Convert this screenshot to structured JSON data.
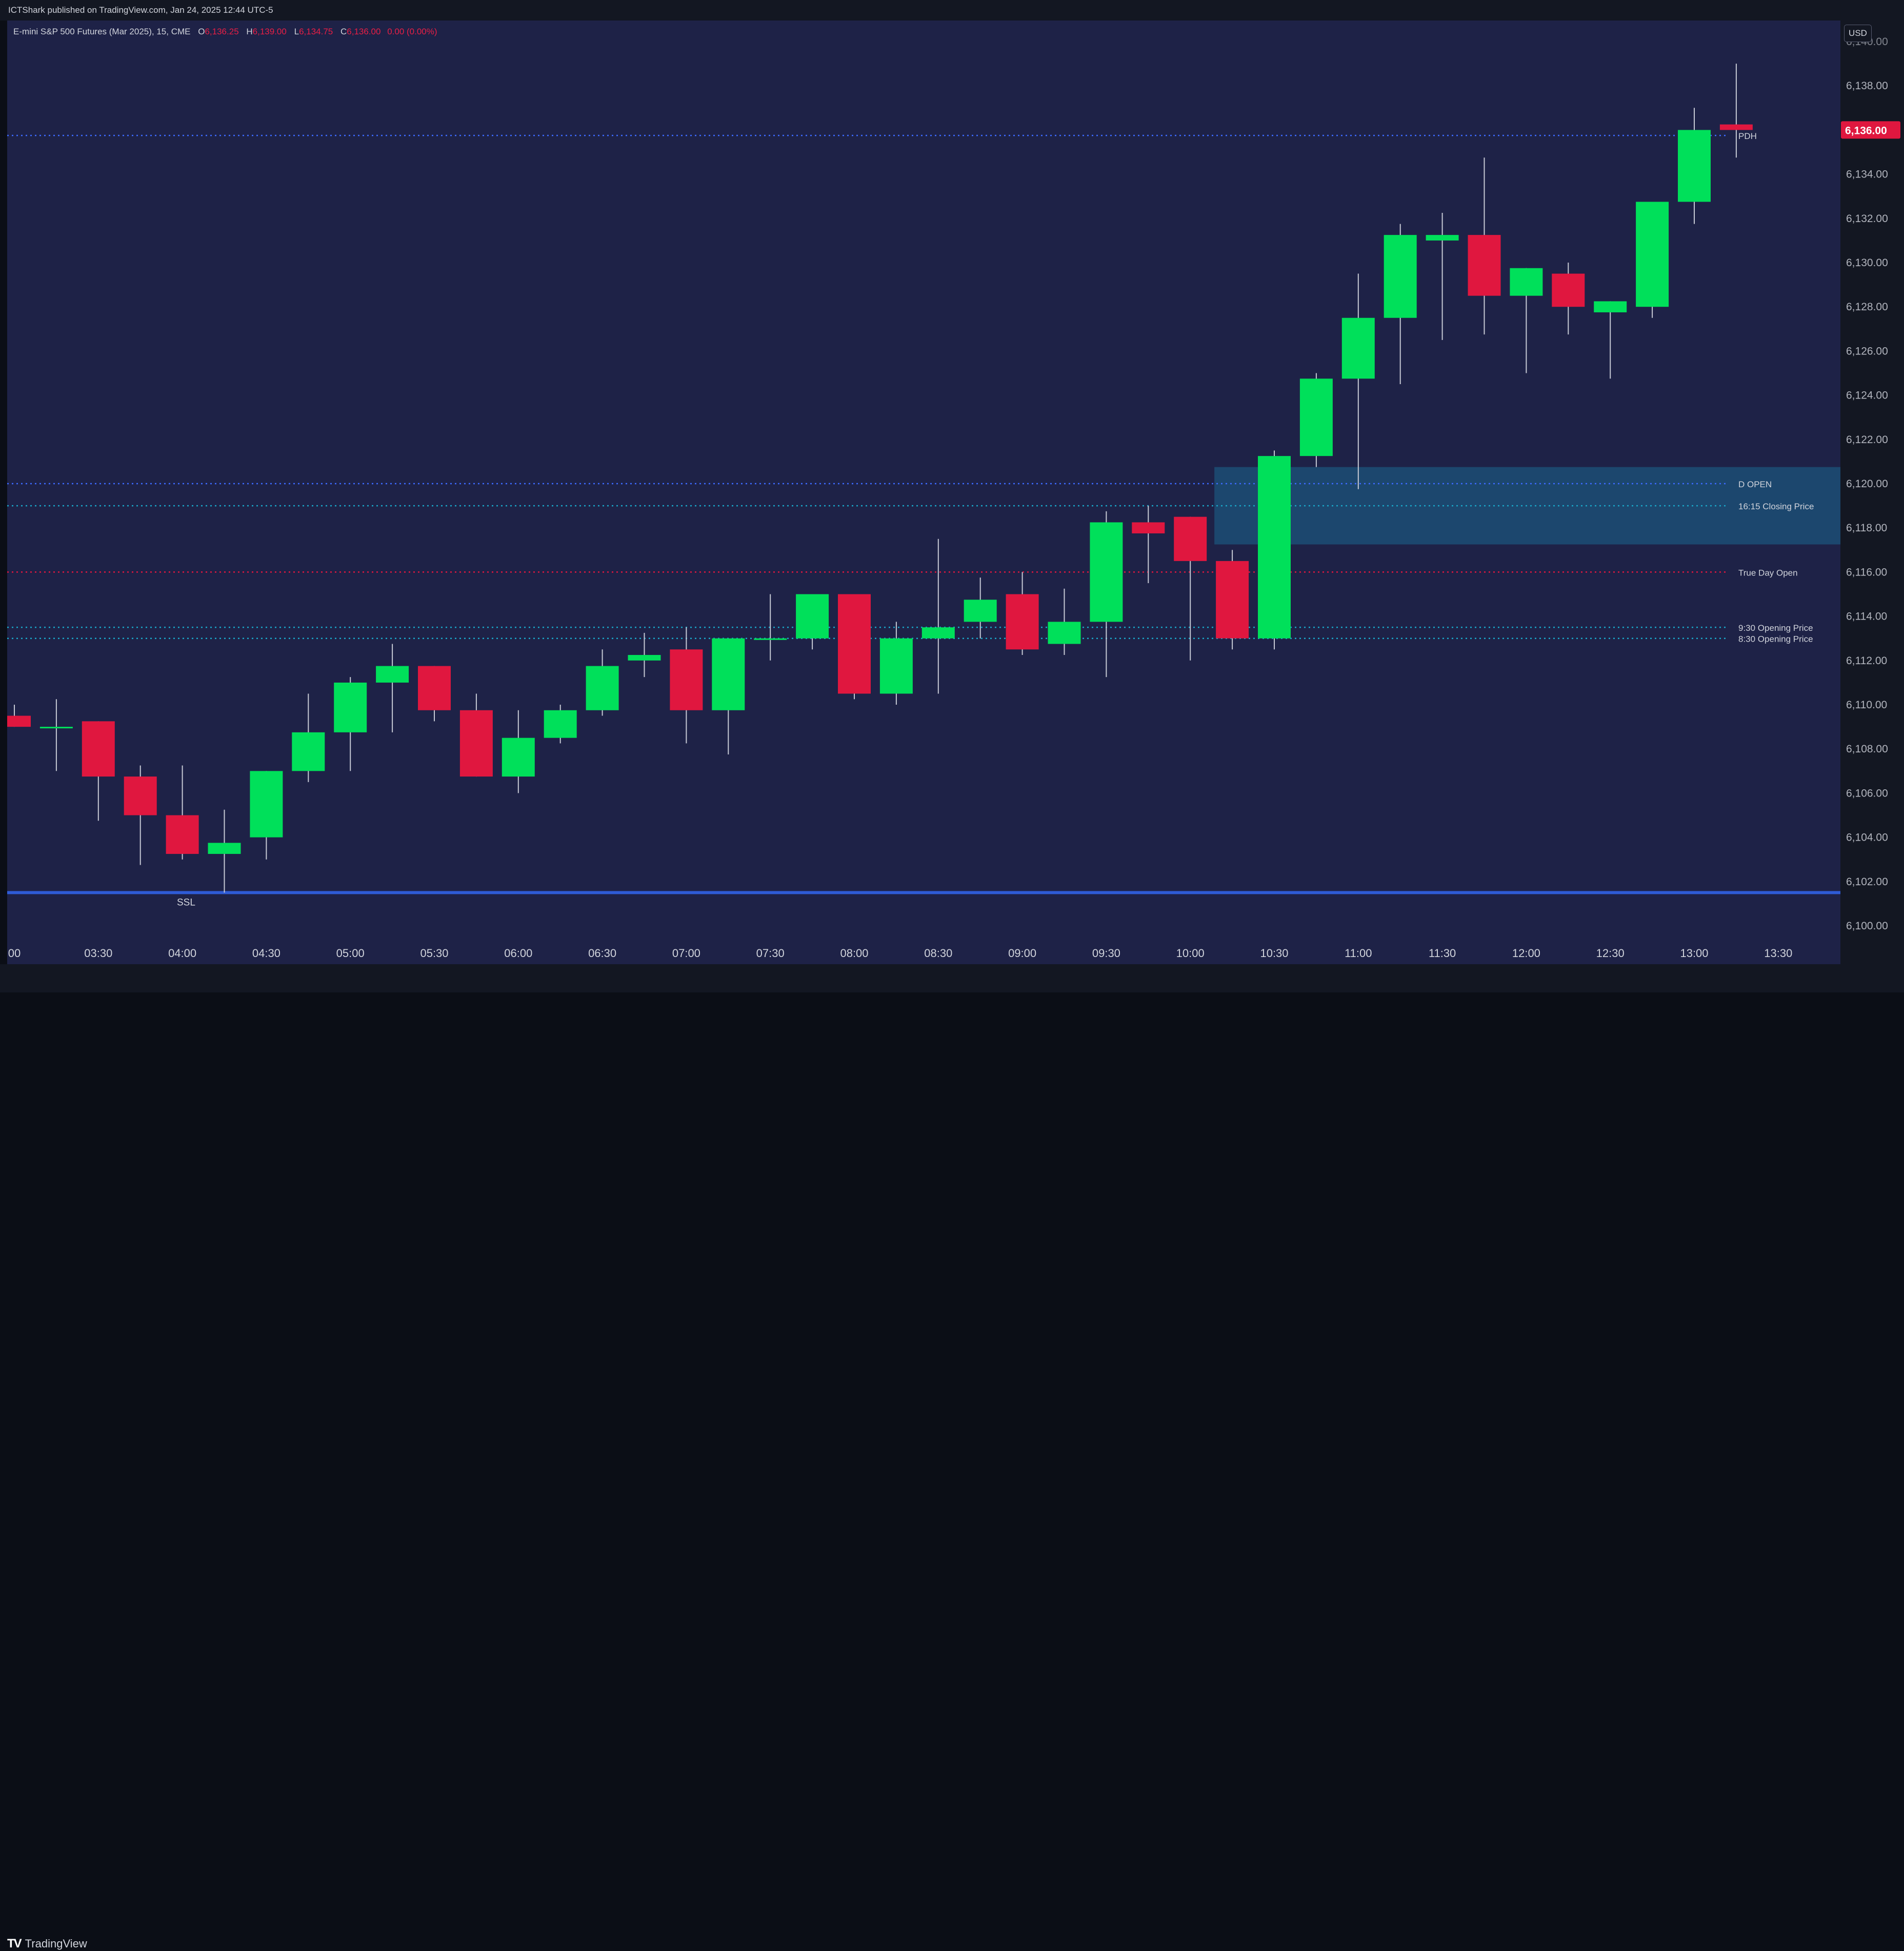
{
  "header": {
    "publisher_text": "ICTShark published on TradingView.com, Jan 24, 2025 12:44 UTC-5"
  },
  "legend": {
    "symbol": "E-mini S&P 500 Futures (Mar 2025), 15, CME",
    "o_label": "O",
    "o_value": "6,136.25",
    "h_label": "H",
    "h_value": "6,139.00",
    "l_label": "L",
    "l_value": "6,134.75",
    "c_label": "C",
    "c_value": "6,136.00",
    "change": "0.00 (0.00%)"
  },
  "currency": "USD",
  "brand": "TradingView",
  "colors": {
    "background": "#1e2247",
    "up": "#00e05a",
    "down": "#e0173f",
    "zone": "#1c4d75",
    "ssl_line": "#2f5bd6"
  },
  "chart_data": {
    "type": "candlestick",
    "symbol": "E-mini S&P 500 Futures (Mar 2025)",
    "interval": "15",
    "ylim": [
      6099,
      6141.5
    ],
    "y_ticks": [
      6100,
      6102,
      6104,
      6106,
      6108,
      6110,
      6112,
      6114,
      6116,
      6118,
      6120,
      6122,
      6124,
      6126,
      6128,
      6130,
      6132,
      6134,
      6136,
      6138
    ],
    "y_tick_labels": [
      "6,100.00",
      "6,102.00",
      "6,104.00",
      "6,106.00",
      "6,108.00",
      "6,110.00",
      "6,112.00",
      "6,114.00",
      "6,116.00",
      "6,118.00",
      "6,120.00",
      "6,122.00",
      "6,124.00",
      "6,126.00",
      "6,128.00",
      "6,130.00",
      "6,132.00",
      "6,134.00",
      "6,136.00",
      "6,138.00"
    ],
    "x_ticks": [
      {
        "i": -0.5,
        "label": "00"
      },
      {
        "i": 1.5,
        "label": "03:30"
      },
      {
        "i": 3.5,
        "label": "04:00"
      },
      {
        "i": 5.5,
        "label": "04:30"
      },
      {
        "i": 7.5,
        "label": "05:00"
      },
      {
        "i": 9.5,
        "label": "05:30"
      },
      {
        "i": 11.5,
        "label": "06:00"
      },
      {
        "i": 13.5,
        "label": "06:30"
      },
      {
        "i": 15.5,
        "label": "07:00"
      },
      {
        "i": 17.5,
        "label": "07:30"
      },
      {
        "i": 19.5,
        "label": "08:00"
      },
      {
        "i": 21.5,
        "label": "08:30"
      },
      {
        "i": 23.5,
        "label": "09:00"
      },
      {
        "i": 25.5,
        "label": "09:30"
      },
      {
        "i": 27.5,
        "label": "10:00"
      },
      {
        "i": 29.5,
        "label": "10:30"
      },
      {
        "i": 31.5,
        "label": "11:00"
      },
      {
        "i": 33.5,
        "label": "11:30"
      },
      {
        "i": 35.5,
        "label": "12:00"
      },
      {
        "i": 37.5,
        "label": "12:30"
      },
      {
        "i": 39.5,
        "label": "13:00"
      },
      {
        "i": 41.5,
        "label": "13:30"
      }
    ],
    "candles": [
      {
        "o": 6109.5,
        "h": 6110.0,
        "l": 6109.0,
        "c": 6109.0
      },
      {
        "o": 6109.0,
        "h": 6110.25,
        "l": 6107.0,
        "c": 6109.0
      },
      {
        "o": 6109.25,
        "h": 6109.25,
        "l": 6104.75,
        "c": 6106.75
      },
      {
        "o": 6106.75,
        "h": 6107.25,
        "l": 6102.75,
        "c": 6105.0
      },
      {
        "o": 6105.0,
        "h": 6107.25,
        "l": 6103.0,
        "c": 6103.25
      },
      {
        "o": 6103.25,
        "h": 6105.25,
        "l": 6101.5,
        "c": 6103.75
      },
      {
        "o": 6104.0,
        "h": 6107.0,
        "l": 6103.0,
        "c": 6107.0
      },
      {
        "o": 6107.0,
        "h": 6110.5,
        "l": 6106.5,
        "c": 6108.75
      },
      {
        "o": 6108.75,
        "h": 6111.25,
        "l": 6107.0,
        "c": 6111.0
      },
      {
        "o": 6111.0,
        "h": 6112.75,
        "l": 6108.75,
        "c": 6111.75
      },
      {
        "o": 6111.75,
        "h": 6111.75,
        "l": 6109.25,
        "c": 6109.75
      },
      {
        "o": 6109.75,
        "h": 6110.5,
        "l": 6106.75,
        "c": 6106.75
      },
      {
        "o": 6106.75,
        "h": 6109.75,
        "l": 6106.0,
        "c": 6108.5
      },
      {
        "o": 6108.5,
        "h": 6110.0,
        "l": 6108.25,
        "c": 6109.75
      },
      {
        "o": 6109.75,
        "h": 6112.5,
        "l": 6109.5,
        "c": 6111.75
      },
      {
        "o": 6112.0,
        "h": 6113.25,
        "l": 6111.25,
        "c": 6112.25
      },
      {
        "o": 6112.5,
        "h": 6113.5,
        "l": 6108.25,
        "c": 6109.75
      },
      {
        "o": 6109.75,
        "h": 6113.0,
        "l": 6107.75,
        "c": 6113.0
      },
      {
        "o": 6113.0,
        "h": 6115.0,
        "l": 6112.0,
        "c": 6113.0
      },
      {
        "o": 6113.0,
        "h": 6115.0,
        "l": 6112.5,
        "c": 6115.0
      },
      {
        "o": 6115.0,
        "h": 6115.0,
        "l": 6110.25,
        "c": 6110.5
      },
      {
        "o": 6110.5,
        "h": 6113.75,
        "l": 6110.0,
        "c": 6113.0
      },
      {
        "o": 6113.0,
        "h": 6117.5,
        "l": 6110.5,
        "c": 6113.5
      },
      {
        "o": 6113.75,
        "h": 6115.75,
        "l": 6113.0,
        "c": 6114.75
      },
      {
        "o": 6115.0,
        "h": 6116.0,
        "l": 6112.25,
        "c": 6112.5
      },
      {
        "o": 6112.75,
        "h": 6115.25,
        "l": 6112.25,
        "c": 6113.75
      },
      {
        "o": 6113.75,
        "h": 6118.75,
        "l": 6111.25,
        "c": 6118.25
      },
      {
        "o": 6118.25,
        "h": 6119.0,
        "l": 6115.5,
        "c": 6117.75
      },
      {
        "o": 6118.5,
        "h": 6118.5,
        "l": 6112.0,
        "c": 6116.5
      },
      {
        "o": 6116.5,
        "h": 6117.0,
        "l": 6112.5,
        "c": 6113.0
      },
      {
        "o": 6113.0,
        "h": 6121.5,
        "l": 6112.5,
        "c": 6121.25
      },
      {
        "o": 6121.25,
        "h": 6125.0,
        "l": 6120.75,
        "c": 6124.75
      },
      {
        "o": 6124.75,
        "h": 6129.5,
        "l": 6119.75,
        "c": 6127.5
      },
      {
        "o": 6127.5,
        "h": 6131.75,
        "l": 6124.5,
        "c": 6131.25
      },
      {
        "o": 6131.0,
        "h": 6132.25,
        "l": 6126.5,
        "c": 6131.25
      },
      {
        "o": 6131.25,
        "h": 6134.75,
        "l": 6126.75,
        "c": 6128.5
      },
      {
        "o": 6128.5,
        "h": 6129.75,
        "l": 6125.0,
        "c": 6129.75
      },
      {
        "o": 6129.5,
        "h": 6130.0,
        "l": 6126.75,
        "c": 6128.0
      },
      {
        "o": 6127.75,
        "h": 6128.25,
        "l": 6124.75,
        "c": 6128.25
      },
      {
        "o": 6128.0,
        "h": 6132.75,
        "l": 6127.5,
        "c": 6132.75
      },
      {
        "o": 6132.75,
        "h": 6137.0,
        "l": 6131.75,
        "c": 6136.0
      },
      {
        "o": 6136.25,
        "h": 6139.0,
        "l": 6134.75,
        "c": 6136.0
      }
    ],
    "levels": [
      {
        "label": "PDH",
        "price": 6135.75,
        "color": "#3d6bff",
        "style": "dotted"
      },
      {
        "label": "D OPEN",
        "price": 6120.0,
        "color": "#3d6bff",
        "style": "dotted"
      },
      {
        "label": "16:15 Closing Price",
        "price": 6119.0,
        "color": "#1aa6c8",
        "style": "dotted"
      },
      {
        "label": "True Day Open",
        "price": 6116.0,
        "color": "#e0173f",
        "style": "dotted"
      },
      {
        "label": "9:30 Opening Price",
        "price": 6113.5,
        "color": "#1aa6c8",
        "style": "dotted"
      },
      {
        "label": "8:30 Opening Price",
        "price": 6113.0,
        "color": "#1aa6c8",
        "style": "dotted"
      },
      {
        "label": "SSL",
        "price": 6101.5,
        "color": "#2f5bd6",
        "style": "solid"
      }
    ],
    "zone": {
      "from_index": 29,
      "price_top": 6120.75,
      "price_bottom": 6117.25
    },
    "last_price_label": "6,136.00",
    "last_price": 6136.0,
    "top_cut_label": "6,140.00"
  }
}
